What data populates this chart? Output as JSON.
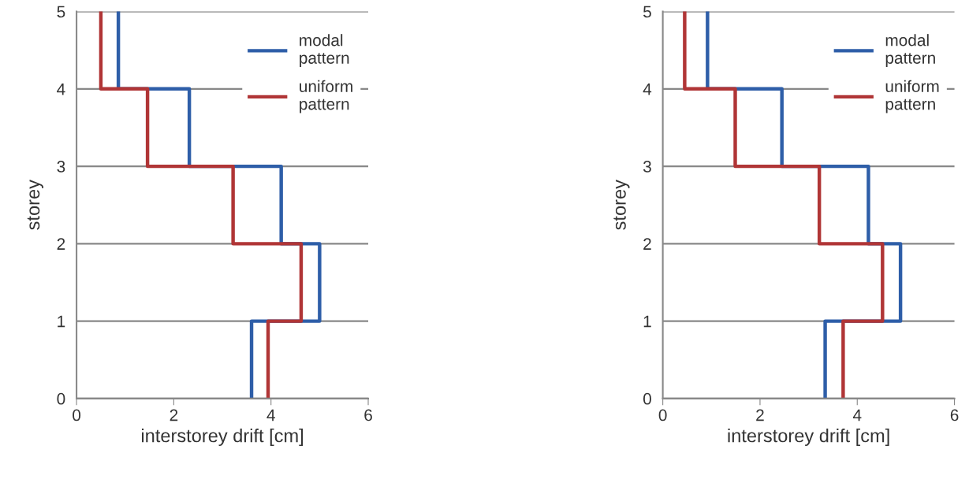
{
  "chart_data": [
    {
      "type": "line",
      "xlabel": "interstorey drift [cm]",
      "ylabel": "storey",
      "xlim": [
        0,
        6
      ],
      "xticks": [
        0,
        2,
        4,
        6
      ],
      "ylim": [
        0,
        5
      ],
      "yticks": [
        0,
        1,
        2,
        3,
        4,
        5
      ],
      "grid": "y",
      "legend": "top right",
      "marker": "none",
      "line_style": "solid",
      "series": [
        {
          "name": "modal pattern",
          "color": "#2e5ea8",
          "x": [
            3.6,
            3.6,
            5.0,
            5.0,
            4.21,
            4.21,
            2.32,
            2.32,
            0.86,
            0.86
          ],
          "values": [
            0,
            1,
            1,
            2,
            2,
            3,
            3,
            4,
            4,
            5
          ]
        },
        {
          "name": "uniform pattern",
          "color": "#b03536",
          "x": [
            3.94,
            3.94,
            4.62,
            4.62,
            3.22,
            3.22,
            1.46,
            1.46,
            0.5,
            0.5
          ],
          "values": [
            0,
            1,
            1,
            2,
            2,
            3,
            3,
            4,
            4,
            5
          ]
        }
      ]
    },
    {
      "type": "line",
      "xlabel": "interstorey drift [cm]",
      "ylabel": "storey",
      "xlim": [
        0,
        6
      ],
      "xticks": [
        0,
        2,
        4,
        6
      ],
      "ylim": [
        0,
        5
      ],
      "yticks": [
        0,
        1,
        2,
        3,
        4,
        5
      ],
      "grid": "y",
      "legend": "top right",
      "marker": "none",
      "line_style": "solid",
      "series": [
        {
          "name": "modal pattern",
          "color": "#2e5ea8",
          "x": [
            3.34,
            3.34,
            4.89,
            4.89,
            4.23,
            4.23,
            2.45,
            2.45,
            0.92,
            0.92
          ],
          "values": [
            0,
            1,
            1,
            2,
            2,
            3,
            3,
            4,
            4,
            5
          ]
        },
        {
          "name": "uniform pattern",
          "color": "#b03536",
          "x": [
            3.71,
            3.71,
            4.52,
            4.52,
            3.22,
            3.22,
            1.49,
            1.49,
            0.45,
            0.45
          ],
          "values": [
            0,
            1,
            1,
            2,
            2,
            3,
            3,
            4,
            4,
            5
          ]
        }
      ]
    }
  ]
}
